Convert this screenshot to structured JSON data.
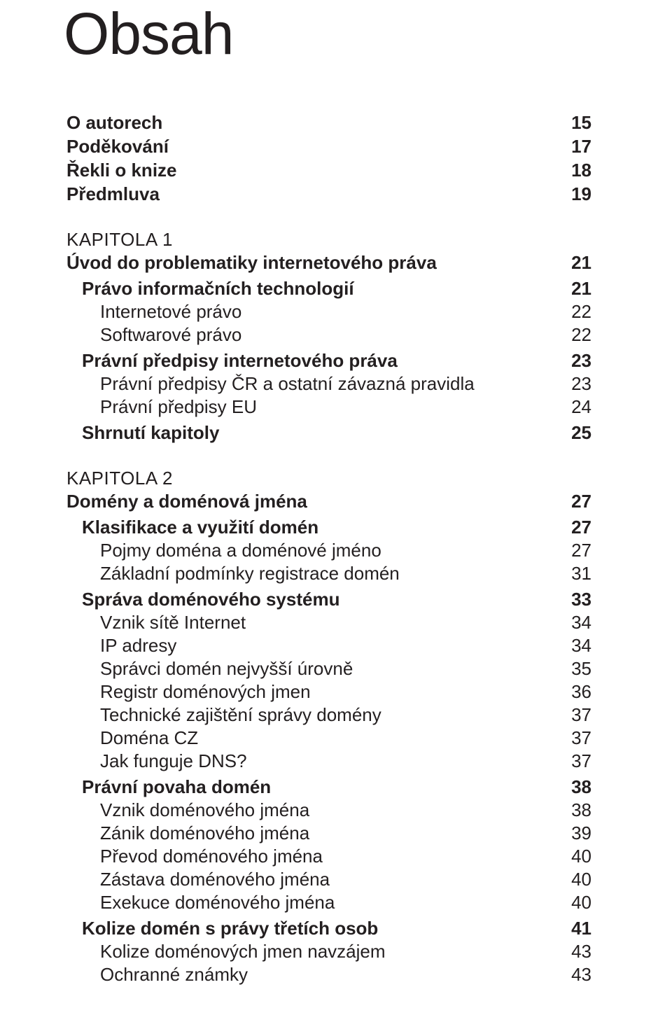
{
  "title": "Obsah",
  "front": [
    {
      "label": "O autorech",
      "page": "15"
    },
    {
      "label": "Poděkování",
      "page": "17"
    },
    {
      "label": "Řekli o knize",
      "page": "18"
    },
    {
      "label": "Předmluva",
      "page": "19"
    }
  ],
  "chapters": [
    {
      "kapitola": "KAPITOLA 1",
      "title": "Úvod do problematiky internetového práva",
      "page": "21",
      "sections": [
        {
          "label": "Právo informačních technologií",
          "page": "21",
          "items": [
            {
              "label": "Internetové právo",
              "page": "22"
            },
            {
              "label": "Softwarové právo",
              "page": "22"
            }
          ]
        },
        {
          "label": "Právní předpisy internetového práva",
          "page": "23",
          "items": [
            {
              "label": "Právní předpisy ČR a ostatní závazná pravidla",
              "page": "23"
            },
            {
              "label": "Právní předpisy EU",
              "page": "24"
            }
          ]
        },
        {
          "label": "Shrnutí kapitoly",
          "page": "25",
          "items": []
        }
      ]
    },
    {
      "kapitola": "KAPITOLA 2",
      "title": "Domény a doménová jména",
      "page": "27",
      "sections": [
        {
          "label": "Klasifikace a využití domén",
          "page": "27",
          "items": [
            {
              "label": "Pojmy doména a doménové jméno",
              "page": "27"
            },
            {
              "label": "Základní podmínky registrace domén",
              "page": "31"
            }
          ]
        },
        {
          "label": "Správa doménového systému",
          "page": "33",
          "items": [
            {
              "label": "Vznik sítě Internet",
              "page": "34"
            },
            {
              "label": "IP adresy",
              "page": "34"
            },
            {
              "label": "Správci domén nejvyšší úrovně",
              "page": "35"
            },
            {
              "label": "Registr doménových jmen",
              "page": "36"
            },
            {
              "label": "Technické zajištění správy domény",
              "page": "37"
            },
            {
              "label": "Doména CZ",
              "page": "37"
            },
            {
              "label": "Jak funguje DNS?",
              "page": "37"
            }
          ]
        },
        {
          "label": "Právní povaha domén",
          "page": "38",
          "items": [
            {
              "label": "Vznik doménového jména",
              "page": "38"
            },
            {
              "label": "Zánik doménového jména",
              "page": "39"
            },
            {
              "label": "Převod doménového jména",
              "page": "40"
            },
            {
              "label": "Zástava doménového jména",
              "page": "40"
            },
            {
              "label": "Exekuce doménového jména",
              "page": "40"
            }
          ]
        },
        {
          "label": "Kolize domén s právy třetích osob",
          "page": "41",
          "items": [
            {
              "label": "Kolize doménových jmen navzájem",
              "page": "43"
            },
            {
              "label": "Ochranné známky",
              "page": "43"
            }
          ]
        }
      ]
    }
  ]
}
